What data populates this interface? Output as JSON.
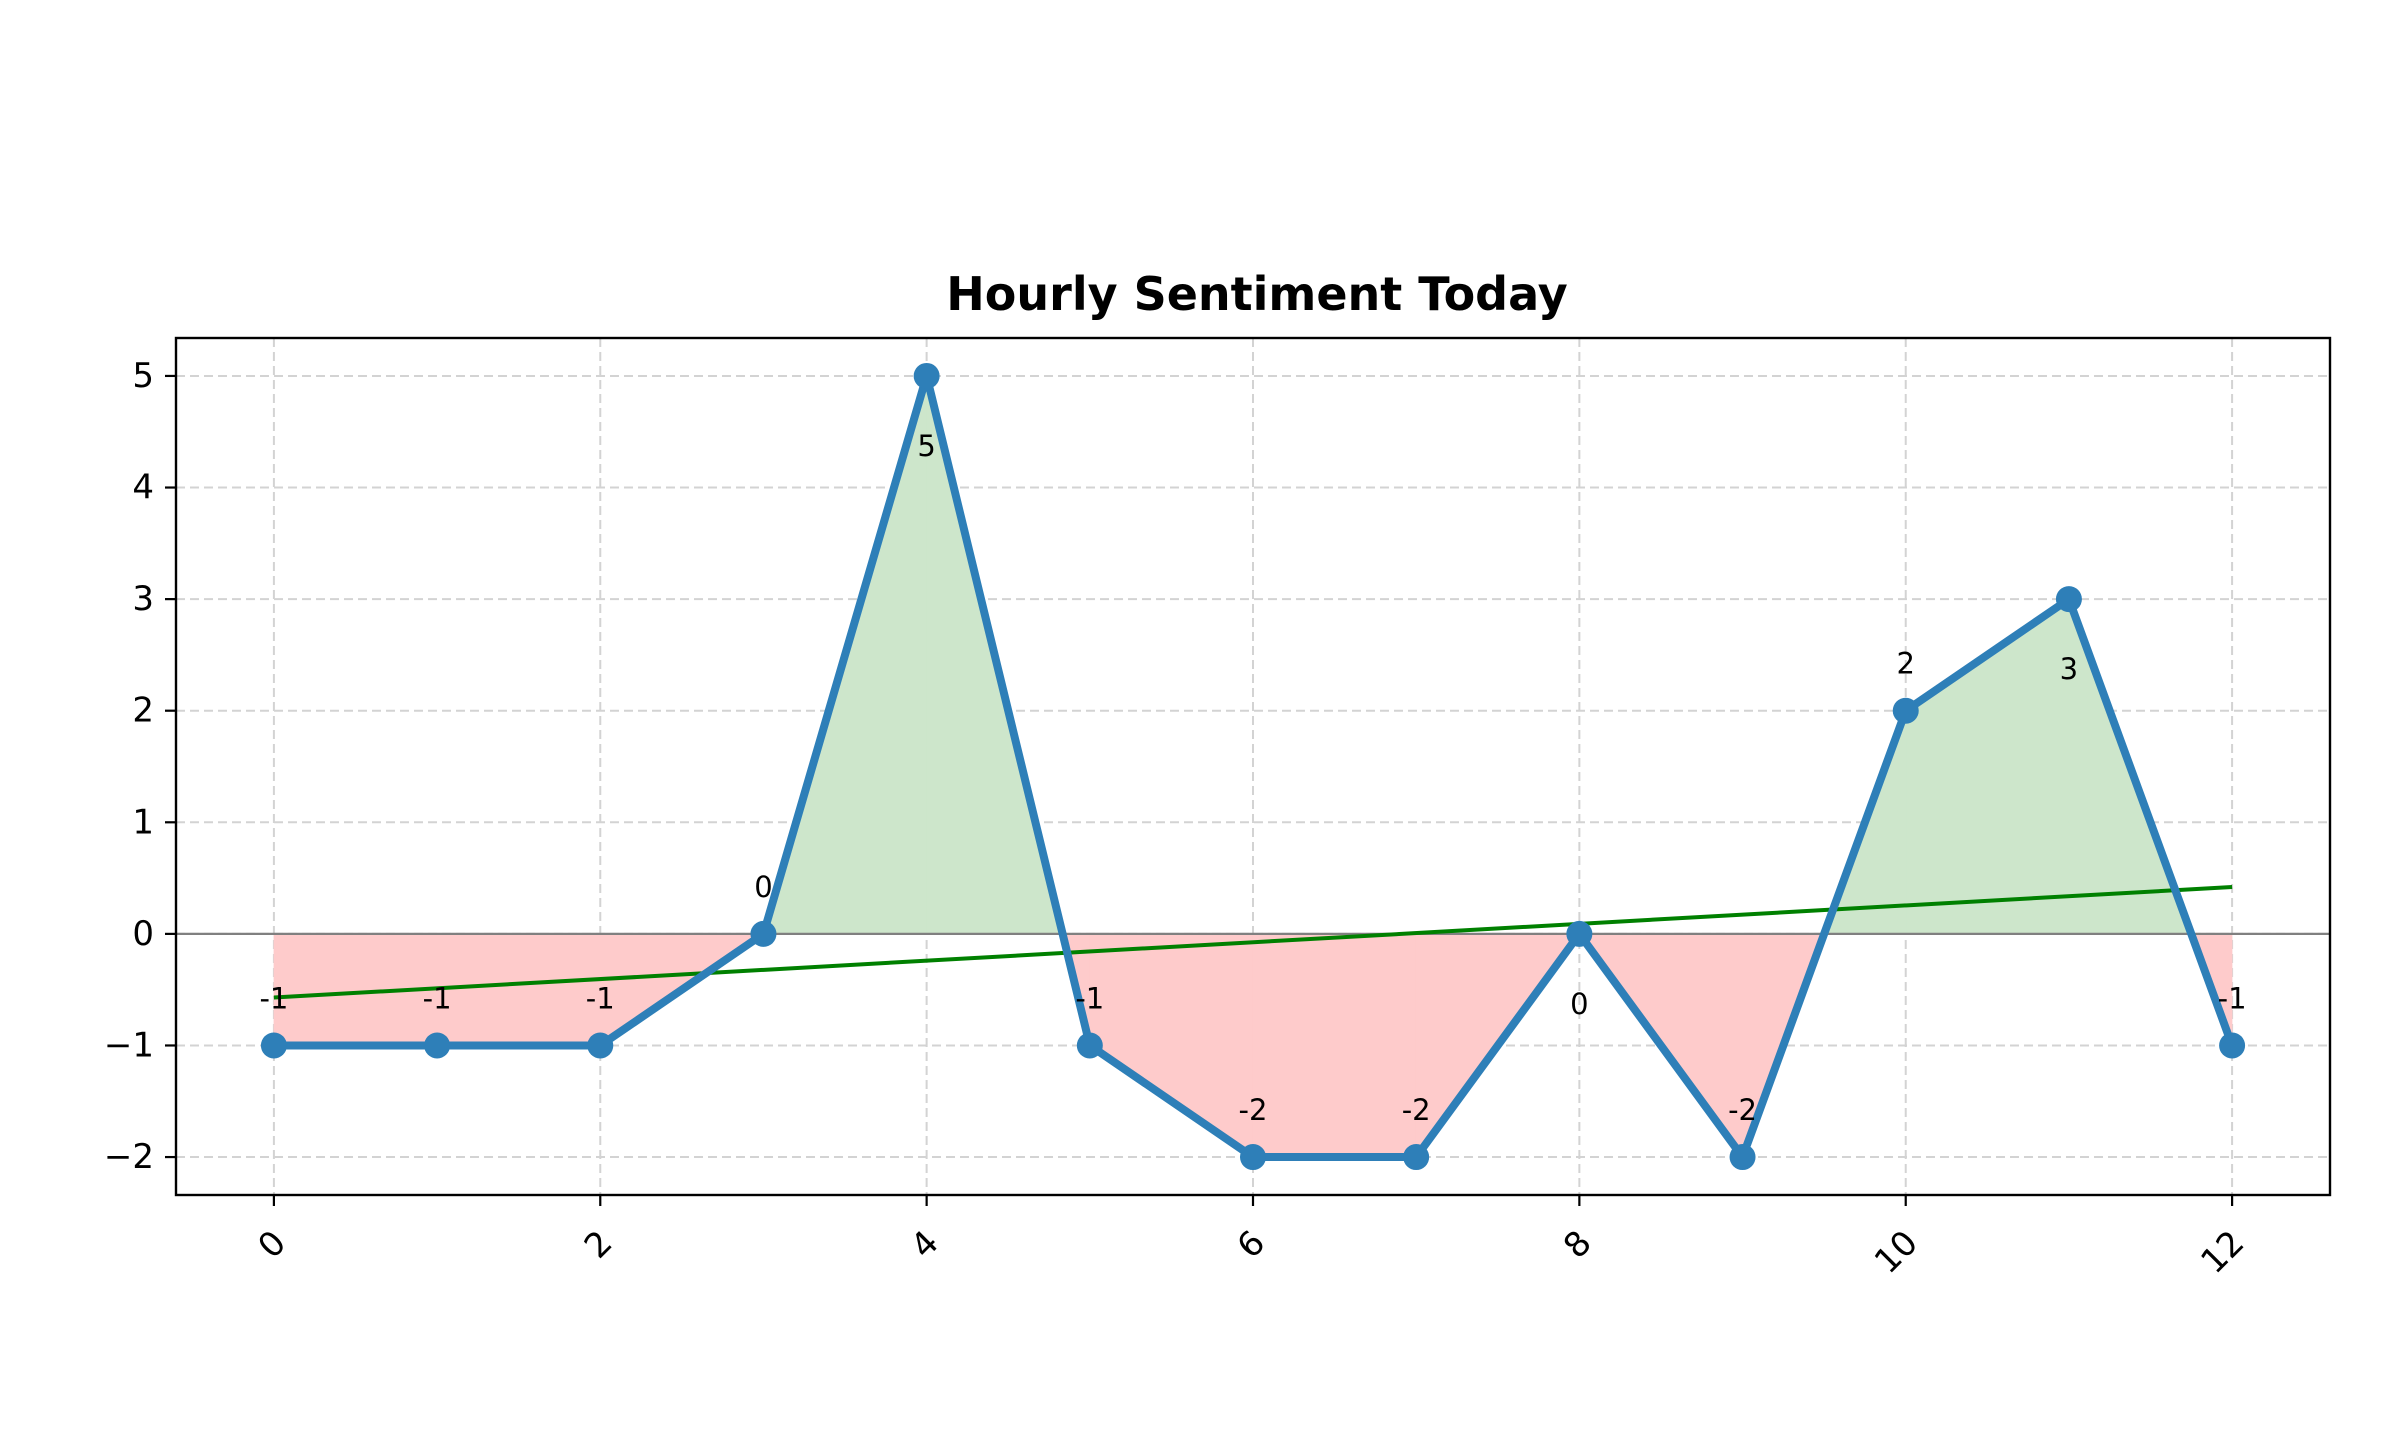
{
  "chart_data": {
    "type": "line",
    "title": "Hourly Sentiment Today",
    "xlabel": "",
    "ylabel": "",
    "x": [
      0,
      1,
      2,
      3,
      4,
      5,
      6,
      7,
      8,
      9,
      10,
      11,
      12
    ],
    "series": [
      {
        "values": [
          -1,
          -1,
          -1,
          0,
          5,
          -1,
          -2,
          -2,
          0,
          -2,
          2,
          3,
          -1
        ],
        "color": "#2e7fb8"
      }
    ],
    "data_labels": [
      "-1",
      "-1",
      "-1",
      "0",
      "5",
      "-1",
      "-2",
      "-2",
      "0",
      "-2",
      "2",
      "3",
      "-1"
    ],
    "trend_line": {
      "start": [
        0,
        -0.57
      ],
      "end": [
        12,
        0.42
      ],
      "color": "#008000"
    },
    "baseline": 0,
    "fill_positive_color": "#cde6cb",
    "fill_negative_color": "#fecbcb",
    "xlim": [
      -0.6,
      12.6
    ],
    "ylim": [
      -2.34,
      5.34
    ],
    "xticks": [
      0,
      2,
      4,
      6,
      8,
      10,
      12
    ],
    "xtick_labels": [
      "0",
      "2",
      "4",
      "6",
      "8",
      "10",
      "12"
    ],
    "yticks": [
      5,
      4,
      3,
      2,
      1,
      0,
      -1,
      -2
    ],
    "ytick_labels": [
      "5",
      "4",
      "3",
      "2",
      "1",
      "0",
      "−1",
      "−2"
    ],
    "xtick_rotation": 45,
    "grid": true,
    "legend": "none"
  }
}
